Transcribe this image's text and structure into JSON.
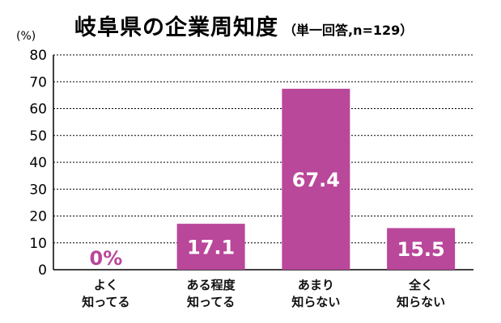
{
  "chart_data": {
    "type": "bar",
    "title": "岐阜県の企業周知度",
    "subtitle": "（単一回答,n=129）",
    "unit": "(%)",
    "ylim": [
      0,
      80
    ],
    "yticks": [
      0,
      10,
      20,
      30,
      40,
      50,
      60,
      70,
      80
    ],
    "grid": true,
    "categories": [
      [
        "よく",
        "知ってる"
      ],
      [
        "ある程度",
        "知ってる"
      ],
      [
        "あまり",
        "知らない"
      ],
      [
        "全く",
        "知らない"
      ]
    ],
    "values": [
      0,
      17.1,
      67.4,
      15.5
    ],
    "data_labels": [
      "0%",
      "17.1",
      "67.4",
      "15.5"
    ],
    "colors": {
      "bar": "#b9479a",
      "label_on_bar": "#ffffff",
      "label_off_bar": "#b9479a"
    }
  }
}
